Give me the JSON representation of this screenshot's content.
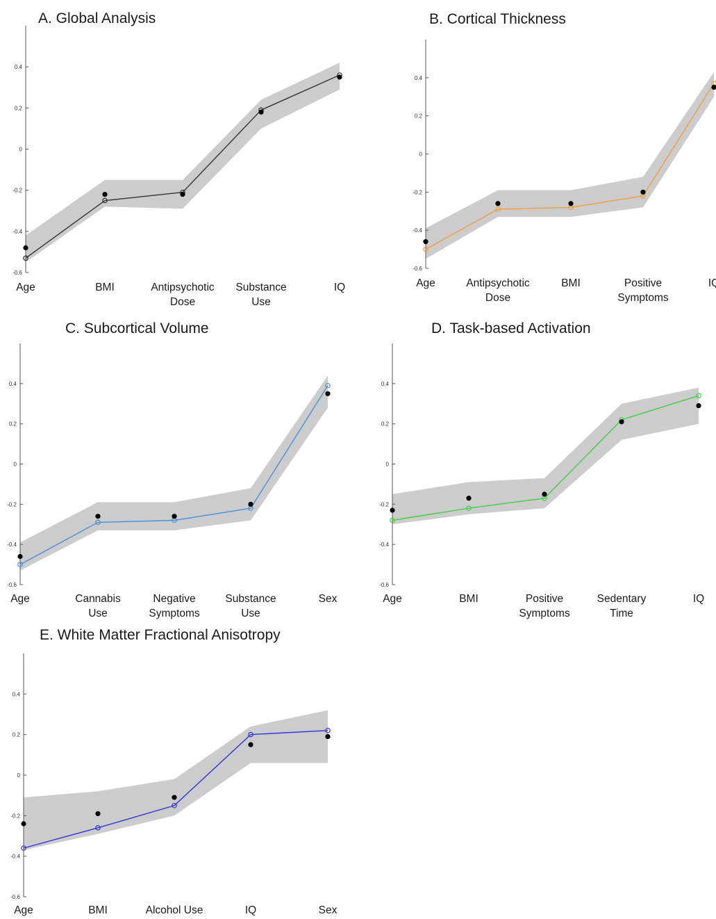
{
  "figure": {
    "panels": [
      {
        "title": "A. Global Analysis",
        "color": "#333333",
        "categories": [
          [
            "Age"
          ],
          [
            "BMI"
          ],
          [
            "Antipsychotic",
            "Dose"
          ],
          [
            "Substance",
            "Use"
          ],
          [
            "IQ"
          ]
        ]
      },
      {
        "title": "B. Cortical Thickness",
        "color": "#f0a040",
        "categories": [
          [
            "Age"
          ],
          [
            "Antipsychotic",
            "Dose"
          ],
          [
            "BMI"
          ],
          [
            "Positive",
            "Symptoms"
          ],
          [
            "IQ"
          ]
        ]
      },
      {
        "title": "C. Subcortical Volume",
        "color": "#4a90d9",
        "categories": [
          [
            "Age"
          ],
          [
            "Cannabis",
            "Use"
          ],
          [
            "Negative",
            "Symptoms"
          ],
          [
            "Substance",
            "Use"
          ],
          [
            "Sex"
          ]
        ]
      },
      {
        "title": "D. Task-based Activation",
        "color": "#40d040",
        "categories": [
          [
            "Age"
          ],
          [
            "BMI"
          ],
          [
            "Positive",
            "Symptoms"
          ],
          [
            "Sedentary",
            "Time"
          ],
          [
            "IQ"
          ]
        ]
      },
      {
        "title": "E. White Matter Fractional Anisotropy",
        "color": "#3333dd",
        "categories": [
          [
            "Age"
          ],
          [
            "BMI"
          ],
          [
            "Alcohol Use"
          ],
          [
            "IQ"
          ],
          [
            "Sex"
          ]
        ]
      }
    ]
  },
  "chart_data": [
    {
      "type": "line",
      "title": "A. Global Analysis",
      "categories": [
        "Age",
        "BMI",
        "Antipsychotic Dose",
        "Substance Use",
        "IQ"
      ],
      "ylim": [
        -0.6,
        0.6
      ],
      "yticks": [
        "-0.6",
        "-0.4",
        "-0.2",
        "0",
        "0.2",
        "0.4"
      ],
      "line_values": [
        -0.53,
        -0.25,
        -0.21,
        0.19,
        0.36
      ],
      "dot_values": [
        -0.48,
        -0.22,
        -0.22,
        0.18,
        0.35
      ],
      "band_lower": [
        -0.55,
        -0.28,
        -0.29,
        0.1,
        0.29
      ],
      "band_upper": [
        -0.42,
        -0.15,
        -0.15,
        0.24,
        0.42
      ],
      "grid": false,
      "legend": "none"
    },
    {
      "type": "line",
      "title": "B. Cortical Thickness",
      "categories": [
        "Age",
        "Antipsychotic Dose",
        "BMI",
        "Positive Symptoms",
        "IQ"
      ],
      "ylim": [
        -0.6,
        0.6
      ],
      "yticks": [
        "-0.6",
        "-0.4",
        "-0.2",
        "0",
        "0.2",
        "0.4"
      ],
      "line_values": [
        -0.5,
        -0.29,
        -0.28,
        -0.22,
        0.37
      ],
      "dot_values": [
        -0.46,
        -0.26,
        -0.26,
        -0.2,
        0.35
      ],
      "band_lower": [
        -0.55,
        -0.33,
        -0.33,
        -0.28,
        0.3
      ],
      "band_upper": [
        -0.39,
        -0.19,
        -0.19,
        -0.12,
        0.43
      ],
      "grid": false,
      "legend": "none"
    },
    {
      "type": "line",
      "title": "C. Subcortical Volume",
      "categories": [
        "Age",
        "Cannabis Use",
        "Negative Symptoms",
        "Substance Use",
        "Sex"
      ],
      "ylim": [
        -0.6,
        0.6
      ],
      "yticks": [
        "-0.6",
        "-0.4",
        "-0.2",
        "0",
        "0.2",
        "0.4"
      ],
      "line_values": [
        -0.5,
        -0.29,
        -0.28,
        -0.22,
        0.39
      ],
      "dot_values": [
        -0.46,
        -0.26,
        -0.26,
        -0.2,
        0.35
      ],
      "band_lower": [
        -0.53,
        -0.33,
        -0.33,
        -0.28,
        0.28
      ],
      "band_upper": [
        -0.39,
        -0.19,
        -0.19,
        -0.12,
        0.44
      ],
      "grid": false,
      "legend": "none"
    },
    {
      "type": "line",
      "title": "D. Task-based Activation",
      "categories": [
        "Age",
        "BMI",
        "Positive Symptoms",
        "Sedentary Time",
        "IQ"
      ],
      "ylim": [
        -0.6,
        0.6
      ],
      "yticks": [
        "-0.6",
        "-0.4",
        "-0.2",
        "0",
        "0.2",
        "0.4"
      ],
      "line_values": [
        -0.28,
        -0.22,
        -0.17,
        0.22,
        0.34
      ],
      "dot_values": [
        -0.23,
        -0.17,
        -0.15,
        0.21,
        0.29
      ],
      "band_lower": [
        -0.3,
        -0.25,
        -0.22,
        0.12,
        0.2
      ],
      "band_upper": [
        -0.15,
        -0.09,
        -0.07,
        0.3,
        0.38
      ],
      "grid": false,
      "legend": "none"
    },
    {
      "type": "line",
      "title": "E. White Matter Fractional Anisotropy",
      "categories": [
        "Age",
        "BMI",
        "Alcohol Use",
        "IQ",
        "Sex"
      ],
      "ylim": [
        -0.6,
        0.6
      ],
      "yticks": [
        "-0.6",
        "-0.4",
        "-0.2",
        "0",
        "0.2",
        "0.4"
      ],
      "line_values": [
        -0.36,
        -0.26,
        -0.15,
        0.2,
        0.22
      ],
      "dot_values": [
        -0.24,
        -0.19,
        -0.11,
        0.15,
        0.19
      ],
      "band_lower": [
        -0.37,
        -0.29,
        -0.2,
        0.06,
        0.06
      ],
      "band_upper": [
        -0.11,
        -0.08,
        -0.02,
        0.24,
        0.32
      ],
      "grid": false,
      "legend": "none"
    }
  ]
}
